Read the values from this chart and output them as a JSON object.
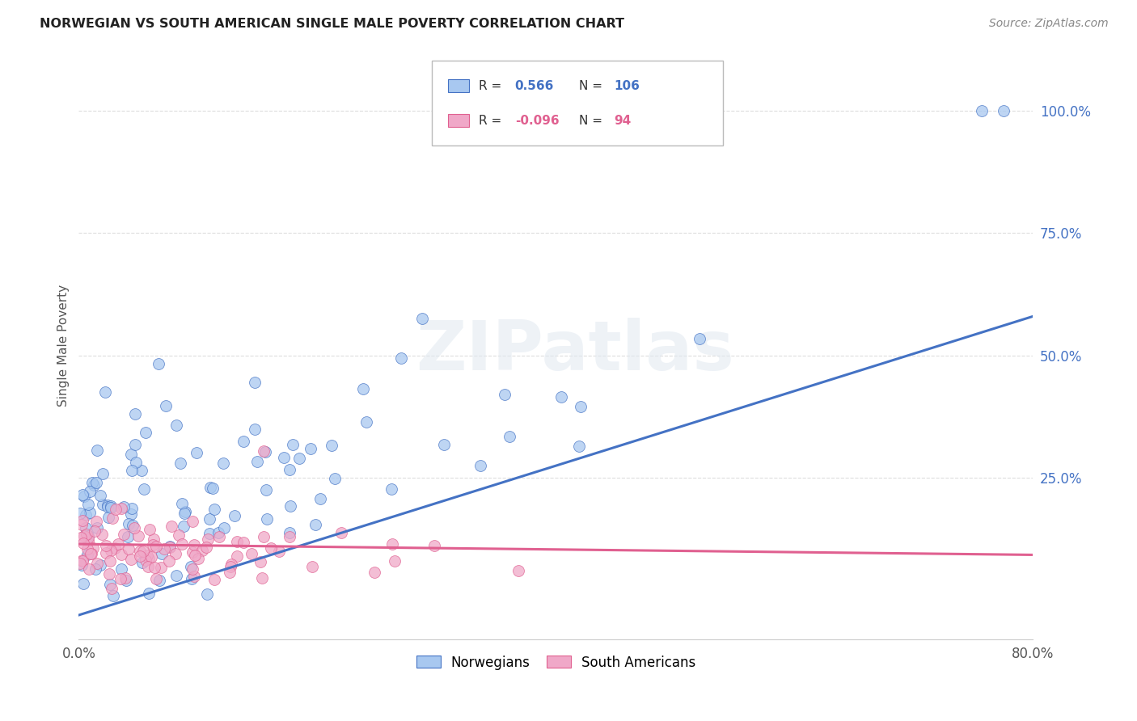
{
  "title": "NORWEGIAN VS SOUTH AMERICAN SINGLE MALE POVERTY CORRELATION CHART",
  "source": "Source: ZipAtlas.com",
  "ylabel": "Single Male Poverty",
  "xlim": [
    0.0,
    0.8
  ],
  "ylim": [
    -0.08,
    1.12
  ],
  "x_ticks": [
    0.0,
    0.2,
    0.4,
    0.6,
    0.8
  ],
  "x_tick_labels": [
    "0.0%",
    "",
    "",
    "",
    "80.0%"
  ],
  "y_ticks_right": [
    0.25,
    0.5,
    0.75,
    1.0
  ],
  "y_tick_labels_right": [
    "25.0%",
    "50.0%",
    "75.0%",
    "100.0%"
  ],
  "legend_r_norwegian": "0.566",
  "legend_n_norwegian": "106",
  "legend_r_southam": "-0.096",
  "legend_n_southam": "94",
  "norwegian_color": "#a8c8f0",
  "southam_color": "#f0a8c8",
  "norwegian_line_color": "#4472c4",
  "southam_line_color": "#e06090",
  "right_axis_color": "#4472c4",
  "watermark_text": "ZIPatlas",
  "background_color": "#ffffff",
  "grid_color": "#dddddd",
  "title_color": "#222222",
  "label_color": "#555555",
  "source_color": "#888888",
  "norwegian_line_x0": 0.0,
  "norwegian_line_y0": -0.03,
  "norwegian_line_x1": 0.8,
  "norwegian_line_y1": 0.58,
  "southam_line_x0": 0.0,
  "southam_line_y0": 0.115,
  "southam_line_x1": 0.8,
  "southam_line_y1": 0.093
}
